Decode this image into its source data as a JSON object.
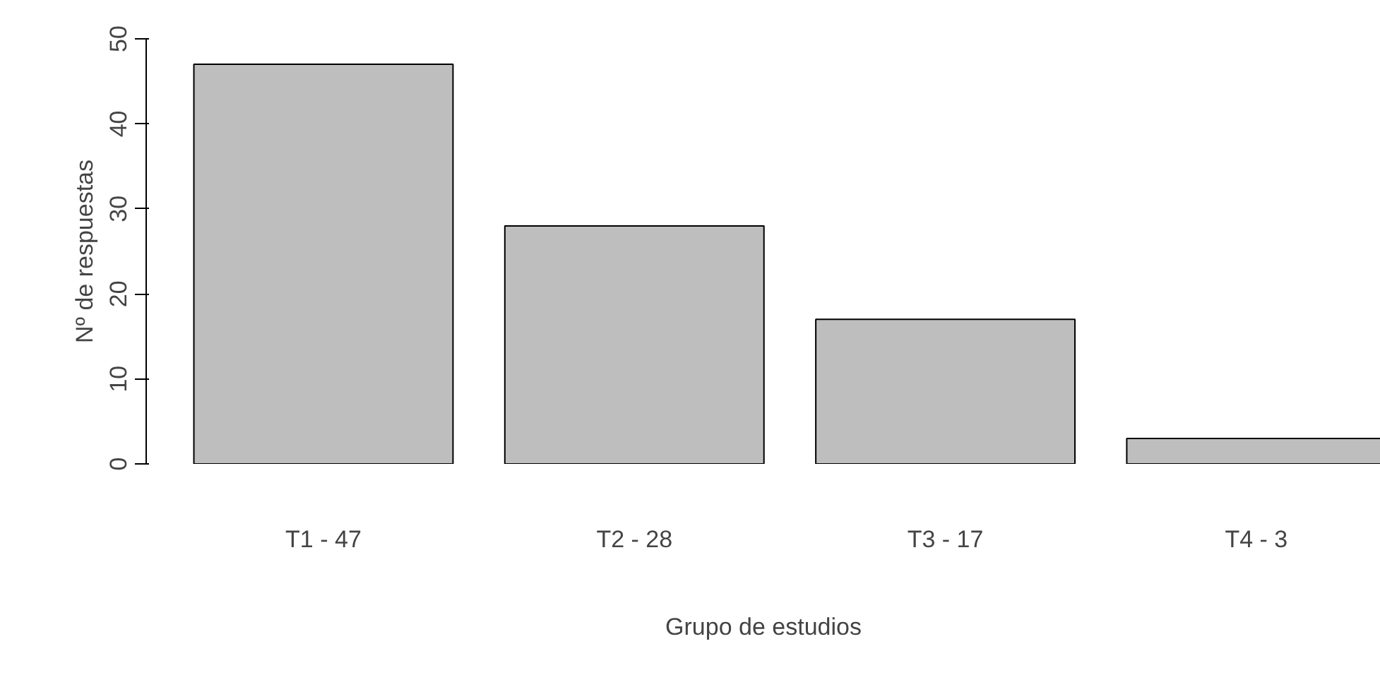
{
  "chart_data": {
    "type": "bar",
    "xlabel": "Grupo de estudios",
    "ylabel": "Nº de respuestas",
    "categories": [
      "T1 - 47",
      "T2 - 28",
      "T3 - 17",
      "T4 - 3"
    ],
    "values": [
      47,
      28,
      17,
      3
    ],
    "color": "#bebebe",
    "ylim": [
      0,
      50
    ],
    "yticks": [
      0,
      10,
      20,
      30,
      40,
      50
    ],
    "grid": false
  }
}
